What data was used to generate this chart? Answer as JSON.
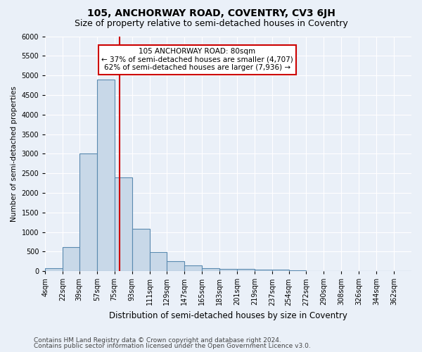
{
  "title": "105, ANCHORWAY ROAD, COVENTRY, CV3 6JH",
  "subtitle": "Size of property relative to semi-detached houses in Coventry",
  "xlabel": "Distribution of semi-detached houses by size in Coventry",
  "ylabel": "Number of semi-detached properties",
  "footnote1": "Contains HM Land Registry data © Crown copyright and database right 2024.",
  "footnote2": "Contains public sector information licensed under the Open Government Licence v3.0.",
  "annotation_title": "105 ANCHORWAY ROAD: 80sqm",
  "annotation_line1": "← 37% of semi-detached houses are smaller (4,707)",
  "annotation_line2": "62% of semi-detached houses are larger (7,936) →",
  "property_size": 80,
  "bar_labels": [
    "4sqm",
    "22sqm",
    "39sqm",
    "57sqm",
    "75sqm",
    "93sqm",
    "111sqm",
    "129sqm",
    "147sqm",
    "165sqm",
    "183sqm",
    "201sqm",
    "219sqm",
    "237sqm",
    "254sqm",
    "272sqm",
    "290sqm",
    "308sqm",
    "326sqm",
    "344sqm",
    "362sqm"
  ],
  "bar_edges": [
    4,
    22,
    39,
    57,
    75,
    93,
    111,
    129,
    147,
    165,
    183,
    201,
    219,
    237,
    254,
    272,
    290,
    308,
    326,
    344,
    362,
    380
  ],
  "bar_heights": [
    80,
    620,
    3000,
    4900,
    2400,
    1080,
    490,
    260,
    145,
    80,
    60,
    50,
    40,
    30,
    20,
    10,
    5,
    5,
    5,
    5,
    5
  ],
  "bar_color": "#c8d8e8",
  "bar_edge_color": "#5a8ab0",
  "bar_linewidth": 0.8,
  "vline_color": "#cc0000",
  "vline_x": 80,
  "ylim": [
    0,
    6000
  ],
  "yticks": [
    0,
    500,
    1000,
    1500,
    2000,
    2500,
    3000,
    3500,
    4000,
    4500,
    5000,
    5500,
    6000
  ],
  "background_color": "#eaf0f8",
  "plot_bg_color": "#eaf0f8",
  "grid_color": "#ffffff",
  "title_fontsize": 10,
  "subtitle_fontsize": 9,
  "annotation_fontsize": 7.5,
  "annotation_box_color": "#ffffff",
  "annotation_box_edge": "#cc0000",
  "tick_fontsize": 7,
  "ylabel_fontsize": 7.5,
  "xlabel_fontsize": 8.5,
  "footnote_fontsize": 6.5
}
